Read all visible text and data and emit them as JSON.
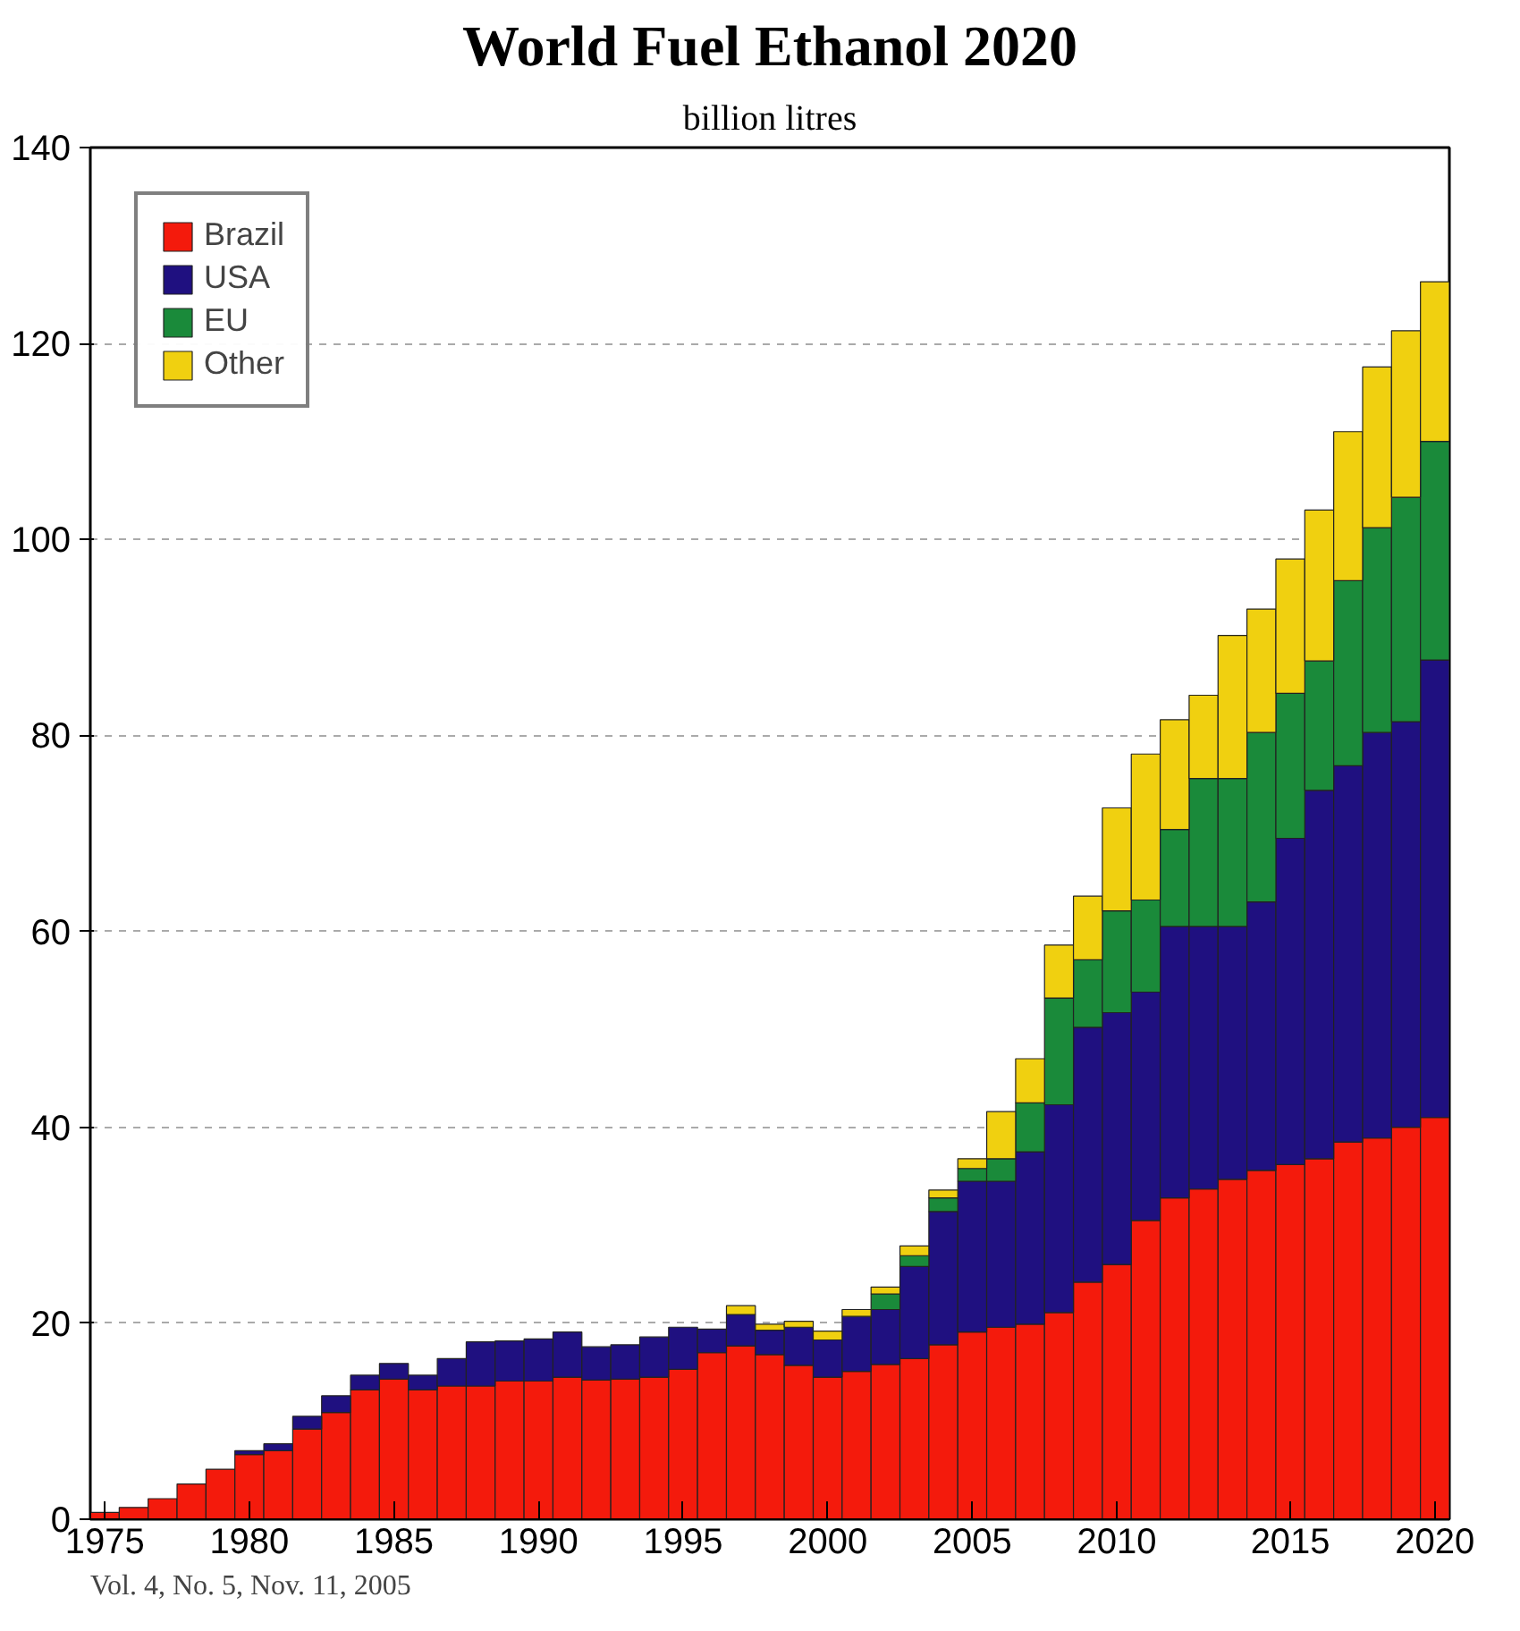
{
  "chart_data": {
    "type": "bar",
    "stacked": true,
    "title": "World Fuel Ethanol 2020",
    "subtitle": "billion litres",
    "categories": [
      "1975",
      null,
      null,
      null,
      null,
      "1980",
      null,
      null,
      null,
      null,
      "1985",
      null,
      null,
      null,
      null,
      "1990",
      null,
      null,
      null,
      null,
      "1995",
      null,
      null,
      null,
      null,
      "2000",
      null,
      null,
      null,
      null,
      "2005",
      null,
      null,
      null,
      null,
      "2010",
      null,
      null,
      null,
      null,
      null,
      "2015",
      null,
      null,
      null,
      null,
      "2020"
    ],
    "series": [
      {
        "name": "Brazil",
        "color": "#f41a0c",
        "values": [
          0.7,
          1.2,
          2.1,
          3.6,
          5.1,
          6.6,
          7.0,
          9.2,
          10.9,
          13.2,
          14.3,
          13.2,
          13.6,
          13.6,
          14.1,
          14.1,
          14.5,
          14.2,
          14.3,
          14.5,
          15.3,
          17.0,
          17.7,
          16.8,
          15.7,
          14.5,
          15.1,
          15.8,
          16.4,
          17.8,
          19.1,
          19.6,
          19.9,
          21.1,
          24.2,
          26.0,
          30.5,
          32.8,
          33.7,
          34.7,
          35.6,
          36.2,
          36.8,
          38.5,
          38.9,
          40.0,
          41.0
        ]
      },
      {
        "name": "USA",
        "color": "#1f1080",
        "values": [
          0,
          0,
          0,
          0,
          0,
          0.4,
          0.7,
          1.3,
          1.7,
          1.5,
          1.6,
          1.5,
          2.8,
          4.5,
          4.1,
          4.3,
          4.6,
          3.4,
          3.5,
          4.1,
          4.3,
          2.4,
          3.2,
          2.5,
          3.9,
          3.8,
          5.6,
          5.6,
          9.4,
          13.6,
          15.4,
          14.9,
          17.6,
          21.2,
          26.0,
          25.7,
          23.3,
          27.7,
          26.8,
          25.8,
          27.4,
          33.3,
          37.6,
          38.4,
          41.4,
          41.4,
          46.7
        ]
      },
      {
        "name": "EU",
        "color": "#1a8a3a",
        "values": [
          0,
          0,
          0,
          0,
          0,
          0,
          0,
          0,
          0,
          0,
          0,
          0,
          0,
          0,
          0,
          0,
          0,
          0,
          0,
          0,
          0,
          0,
          0,
          0,
          0,
          0,
          0,
          1.6,
          1.1,
          1.4,
          1.3,
          2.3,
          5.0,
          10.9,
          6.9,
          10.4,
          9.4,
          9.9,
          15.1,
          15.1,
          17.3,
          14.8,
          13.2,
          18.9,
          20.9,
          22.9,
          22.3
        ]
      },
      {
        "name": "Other",
        "color": "#f0d010",
        "values": [
          0,
          0,
          0,
          0,
          0,
          0,
          0,
          0,
          0,
          0,
          0,
          0,
          0,
          0,
          0,
          0,
          0,
          0,
          0,
          0,
          0,
          0,
          0.9,
          0.6,
          0.6,
          0.9,
          0.7,
          0.7,
          1.0,
          0.8,
          1.0,
          4.8,
          4.5,
          5.4,
          6.5,
          10.5,
          14.9,
          11.2,
          8.5,
          14.6,
          12.6,
          13.7,
          15.4,
          15.2,
          16.4,
          17.0,
          16.3
        ]
      }
    ],
    "ylim": [
      0,
      140
    ],
    "yticks": [
      0,
      20,
      40,
      60,
      80,
      100,
      120,
      140
    ],
    "grid": "y",
    "legend": "top left",
    "annotations": [
      "Vol. 4, No. 5, Nov. 11, 2005"
    ]
  }
}
